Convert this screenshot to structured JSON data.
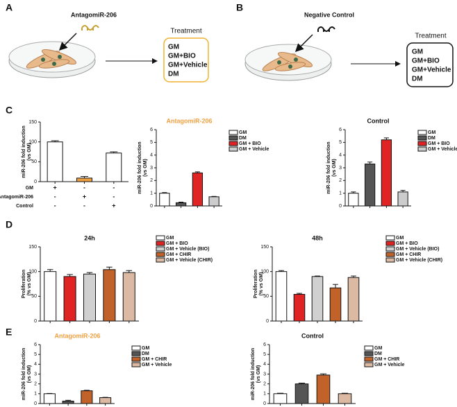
{
  "panel_labels": [
    "A",
    "B",
    "C",
    "D",
    "E"
  ],
  "diagrams": [
    {
      "reagent": "AntagomiR-206",
      "treatment_title": "Treatment",
      "treatments": [
        "GM",
        "GM+BIO",
        "GM+Vehicle",
        "DM"
      ]
    },
    {
      "reagent": "Negative Control",
      "treatment_title": "Treatment",
      "treatments": [
        "GM",
        "GM+BIO",
        "GM+Vehicle",
        "DM"
      ]
    }
  ],
  "chart_data": [
    {
      "type": "bar",
      "ylabel": [
        "miR-206 fold induction",
        "(vs GM)"
      ],
      "categories": [
        null,
        null,
        null
      ],
      "values": [
        100,
        9,
        72
      ],
      "errors": [
        3,
        4,
        3
      ],
      "colors": [
        "#ffffff",
        "#f0a040",
        "#ffffff"
      ],
      "ylim": [
        0,
        150
      ],
      "yticks": [
        0,
        50,
        100,
        150
      ],
      "conditions": [
        {
          "label": "GM",
          "signs": [
            "+",
            "-",
            "-"
          ]
        },
        {
          "label": "AntagomiR-206",
          "signs": [
            "-",
            "+",
            "-"
          ]
        },
        {
          "label": "Control",
          "signs": [
            "-",
            "-",
            "+"
          ]
        }
      ]
    },
    {
      "type": "bar",
      "title": "AntagomiR-206",
      "title_color": "#f0a040",
      "ylabel": [
        "miR-206 fold induction",
        "(vs GM)"
      ],
      "ylim": [
        0,
        6
      ],
      "yticks": [
        0,
        1,
        2,
        3,
        4,
        5,
        6
      ],
      "series": [
        {
          "name": "GM",
          "color": "#ffffff",
          "values": [
            1.0
          ],
          "errors": [
            0.05
          ]
        },
        {
          "name": "DM",
          "color": "#555555",
          "values": [
            0.25
          ],
          "errors": [
            0.05
          ]
        },
        {
          "name": "GM + BIO",
          "color": "#e02424",
          "values": [
            2.6
          ],
          "errors": [
            0.08
          ]
        },
        {
          "name": "GM + Vehicle",
          "color": "#cccccc",
          "values": [
            0.72
          ],
          "errors": [
            0.03
          ]
        }
      ]
    },
    {
      "type": "bar",
      "title": "Control",
      "title_color": "#111111",
      "ylabel": [
        "miR-206 fold induction",
        "(vs GM)"
      ],
      "ylim": [
        0,
        6
      ],
      "yticks": [
        0,
        1,
        2,
        3,
        4,
        5,
        6
      ],
      "series": [
        {
          "name": "GM",
          "color": "#ffffff",
          "values": [
            1.0
          ],
          "errors": [
            0.1
          ]
        },
        {
          "name": "DM",
          "color": "#555555",
          "values": [
            3.3
          ],
          "errors": [
            0.15
          ]
        },
        {
          "name": "GM + BIO",
          "color": "#e02424",
          "values": [
            5.2
          ],
          "errors": [
            0.15
          ]
        },
        {
          "name": "GM + Vehicle",
          "color": "#cccccc",
          "values": [
            1.1
          ],
          "errors": [
            0.12
          ]
        }
      ]
    },
    {
      "type": "bar",
      "title": "24h",
      "title_color": "#111111",
      "ylabel": [
        "Proliferation",
        "(% vs GM)"
      ],
      "ylim": [
        0,
        150
      ],
      "yticks": [
        0,
        50,
        100,
        150
      ],
      "series": [
        {
          "name": "GM",
          "color": "#ffffff",
          "values": [
            100
          ],
          "errors": [
            4
          ]
        },
        {
          "name": "GM + BIO",
          "color": "#e02424",
          "values": [
            90
          ],
          "errors": [
            4
          ]
        },
        {
          "name": "GM + Vehicle (BIO)",
          "color": "#d0d0d0",
          "values": [
            95
          ],
          "errors": [
            3
          ]
        },
        {
          "name": "GM + CHIR",
          "color": "#c0622a",
          "values": [
            104
          ],
          "errors": [
            5
          ]
        },
        {
          "name": "GM + Vehicle (CHIR)",
          "color": "#dbb9a2",
          "values": [
            98
          ],
          "errors": [
            4
          ]
        }
      ]
    },
    {
      "type": "bar",
      "title": "48h",
      "title_color": "#111111",
      "ylabel": [
        "Proliferation",
        "(% vs GM)"
      ],
      "ylim": [
        0,
        150
      ],
      "yticks": [
        0,
        50,
        100,
        150
      ],
      "series": [
        {
          "name": "GM",
          "color": "#ffffff",
          "values": [
            100
          ],
          "errors": [
            2
          ]
        },
        {
          "name": "GM + BIO",
          "color": "#e02424",
          "values": [
            54
          ],
          "errors": [
            2
          ]
        },
        {
          "name": "GM + Vehicle (BIO)",
          "color": "#d0d0d0",
          "values": [
            90
          ],
          "errors": [
            1
          ]
        },
        {
          "name": "GM + CHIR",
          "color": "#c0622a",
          "values": [
            67
          ],
          "errors": [
            7
          ]
        },
        {
          "name": "GM + Vehicle (CHIR)",
          "color": "#dbb9a2",
          "values": [
            88
          ],
          "errors": [
            3
          ]
        }
      ]
    },
    {
      "type": "bar",
      "title": "AntagomiR-206",
      "title_color": "#f0a040",
      "ylabel": [
        "miR-206 fold induction",
        "(vs GM)"
      ],
      "ylim": [
        0,
        6
      ],
      "yticks": [
        0,
        1,
        2,
        3,
        4,
        5,
        6
      ],
      "series": [
        {
          "name": "GM",
          "color": "#ffffff",
          "values": [
            1.0
          ],
          "errors": [
            0.03
          ]
        },
        {
          "name": "DM",
          "color": "#555555",
          "values": [
            0.25
          ],
          "errors": [
            0.08
          ]
        },
        {
          "name": "GM + CHIR",
          "color": "#c0622a",
          "values": [
            1.3
          ],
          "errors": [
            0.05
          ]
        },
        {
          "name": "GM + Vehicle",
          "color": "#dbb9a2",
          "values": [
            0.6
          ],
          "errors": [
            0.03
          ]
        }
      ]
    },
    {
      "type": "bar",
      "title": "Control",
      "title_color": "#111111",
      "ylabel": [
        "miR-206 fold induction",
        "(vs GM)"
      ],
      "ylim": [
        0,
        6
      ],
      "yticks": [
        0,
        1,
        2,
        3,
        4,
        5,
        6
      ],
      "series": [
        {
          "name": "GM",
          "color": "#ffffff",
          "values": [
            1.0
          ],
          "errors": [
            0.05
          ]
        },
        {
          "name": "DM",
          "color": "#555555",
          "values": [
            2.0
          ],
          "errors": [
            0.08
          ]
        },
        {
          "name": "GM + CHIR",
          "color": "#c0622a",
          "values": [
            2.9
          ],
          "errors": [
            0.12
          ]
        },
        {
          "name": "GM + Vehicle",
          "color": "#dbb9a2",
          "values": [
            1.0
          ],
          "errors": [
            0.05
          ]
        }
      ]
    }
  ]
}
